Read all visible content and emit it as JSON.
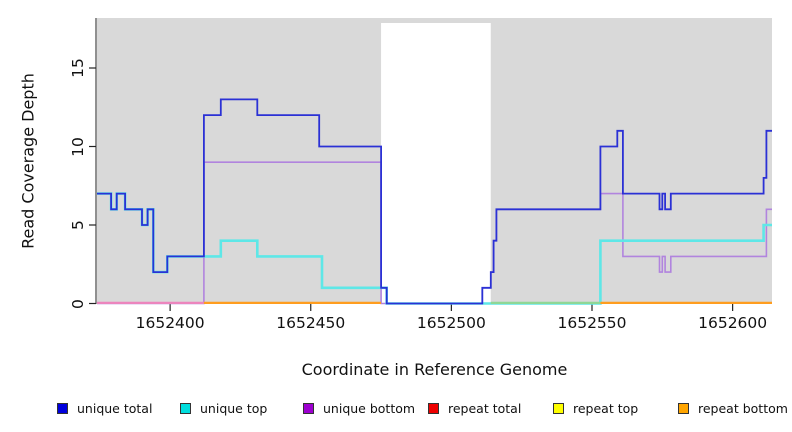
{
  "figure": {
    "plot_bg": "#d9d9d9",
    "gap_band_color": "#ffffff",
    "axis_color": "#222222"
  },
  "chart_data": {
    "type": "line",
    "subtype": "step-coverage",
    "title": "",
    "xlabel": "Coordinate in Reference Genome",
    "ylabel": "Read Coverage Depth",
    "xlim": [
      1652374,
      1652614
    ],
    "ylim": [
      0,
      18
    ],
    "x_ticks": [
      1652400,
      1652450,
      1652500,
      1652550,
      1652600
    ],
    "y_ticks": [
      0,
      5,
      10,
      15
    ],
    "grid": false,
    "legend_position": "bottom",
    "gap_region": {
      "x1": 1652475,
      "x2": 1652514
    },
    "series": [
      {
        "name": "unique total",
        "legend_color": "#0000dd",
        "line_color": "#2b31d5",
        "steps": [
          [
            1652374,
            7
          ],
          [
            1652379,
            6
          ],
          [
            1652381,
            7
          ],
          [
            1652384,
            6
          ],
          [
            1652390,
            5
          ],
          [
            1652392,
            6
          ],
          [
            1652394,
            2
          ],
          [
            1652399,
            3
          ],
          [
            1652412,
            12
          ],
          [
            1652418,
            13
          ],
          [
            1652431,
            12
          ],
          [
            1652453,
            10
          ],
          [
            1652475,
            1
          ],
          [
            1652477,
            0
          ],
          [
            1652511,
            1
          ],
          [
            1652514,
            2
          ],
          [
            1652515,
            4
          ],
          [
            1652516,
            6
          ],
          [
            1652553,
            10
          ],
          [
            1652559,
            11
          ],
          [
            1652561,
            7
          ],
          [
            1652574,
            6
          ],
          [
            1652575,
            7
          ],
          [
            1652576,
            6
          ],
          [
            1652578,
            7
          ],
          [
            1652611,
            8
          ],
          [
            1652612,
            11
          ],
          [
            1652614,
            11
          ]
        ]
      },
      {
        "name": "unique top",
        "legend_color": "#00dddd",
        "line_color": "#5ee7e7",
        "steps": [
          [
            1652374,
            7
          ],
          [
            1652379,
            6
          ],
          [
            1652381,
            7
          ],
          [
            1652384,
            6
          ],
          [
            1652390,
            5
          ],
          [
            1652392,
            6
          ],
          [
            1652394,
            2
          ],
          [
            1652399,
            3
          ],
          [
            1652418,
            4
          ],
          [
            1652431,
            3
          ],
          [
            1652454,
            1
          ],
          [
            1652477,
            0
          ],
          [
            1652553,
            4
          ],
          [
            1652611,
            5
          ],
          [
            1652614,
            5
          ]
        ]
      },
      {
        "name": "unique bottom",
        "legend_color": "#9d00d0",
        "line_color": "#b184de",
        "steps": [
          [
            1652374,
            0
          ],
          [
            1652412,
            9
          ],
          [
            1652475,
            0
          ],
          [
            1652511,
            1
          ],
          [
            1652514,
            2
          ],
          [
            1652515,
            4
          ],
          [
            1652516,
            6
          ],
          [
            1652553,
            7
          ],
          [
            1652561,
            3
          ],
          [
            1652574,
            2
          ],
          [
            1652575,
            3
          ],
          [
            1652576,
            2
          ],
          [
            1652578,
            3
          ],
          [
            1652612,
            6
          ],
          [
            1652614,
            6
          ]
        ]
      },
      {
        "name": "repeat total",
        "legend_color": "#ee0000",
        "line_color": "#ec85bd",
        "steps": [
          [
            1652374,
            0
          ],
          [
            1652614,
            0
          ]
        ]
      },
      {
        "name": "repeat top",
        "legend_color": "#ffff00",
        "line_color": "#8fd795",
        "steps": [
          [
            1652374,
            0
          ],
          [
            1652614,
            0
          ]
        ]
      },
      {
        "name": "repeat bottom",
        "legend_color": "#ffa500",
        "line_color": "#ff9d1e",
        "steps": [
          [
            1652374,
            0
          ],
          [
            1652614,
            0
          ]
        ]
      }
    ],
    "baseline_segments": [
      {
        "color": "#ec85bd",
        "x1": 1652374,
        "x2": 1652412
      },
      {
        "color": "#ff9d1e",
        "x1": 1652412,
        "x2": 1652475
      },
      {
        "color": "#8fd795",
        "x1": 1652514,
        "x2": 1652553
      },
      {
        "color": "#ff9d1e",
        "x1": 1652553,
        "x2": 1652614
      }
    ],
    "legend": [
      {
        "label": "unique total",
        "color": "#0000dd"
      },
      {
        "label": "unique top",
        "color": "#00dddd"
      },
      {
        "label": "unique bottom",
        "color": "#9d00d0"
      },
      {
        "label": "repeat total",
        "color": "#ee0000"
      },
      {
        "label": "repeat top",
        "color": "#ffff00"
      },
      {
        "label": "repeat bottom",
        "color": "#ffa500"
      }
    ]
  }
}
